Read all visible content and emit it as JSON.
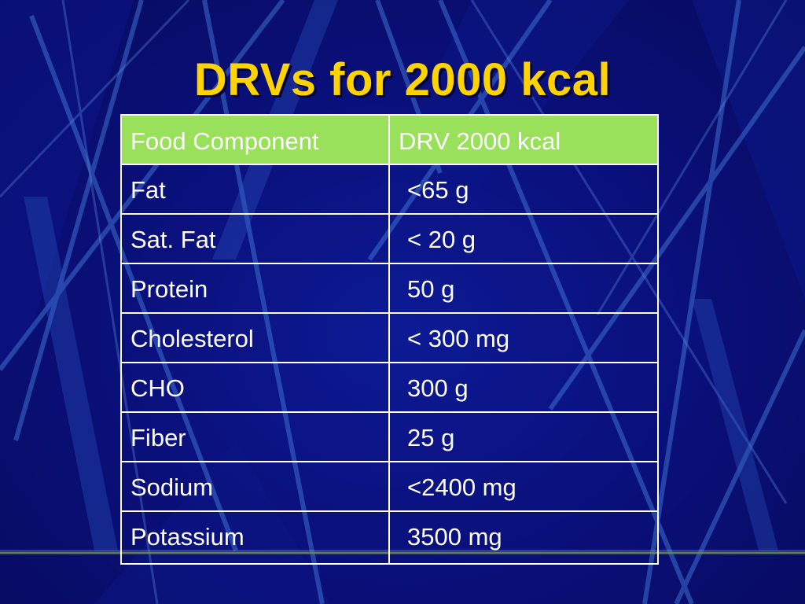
{
  "slide": {
    "title": "DRVs for 2000 kcal"
  },
  "table": {
    "headers": [
      "Food Component",
      "DRV 2000 kcal"
    ],
    "rows": [
      {
        "component": "Fat",
        "drv": "<65 g"
      },
      {
        "component": "Sat. Fat",
        "drv": "< 20 g"
      },
      {
        "component": "Protein",
        "drv": "50 g"
      },
      {
        "component": "Cholesterol",
        "drv": "< 300 mg"
      },
      {
        "component": "CHO",
        "drv": "300 g"
      },
      {
        "component": "Fiber",
        "drv": "25 g"
      },
      {
        "component": "Sodium",
        "drv": "<2400 mg"
      },
      {
        "component": "Potassium",
        "drv": "3500 mg"
      }
    ]
  },
  "colors": {
    "background": "#0a0f78",
    "title": "#ffd300",
    "header_fill": "#99e05b",
    "text": "#ffffff",
    "grid": "#ffffff"
  }
}
